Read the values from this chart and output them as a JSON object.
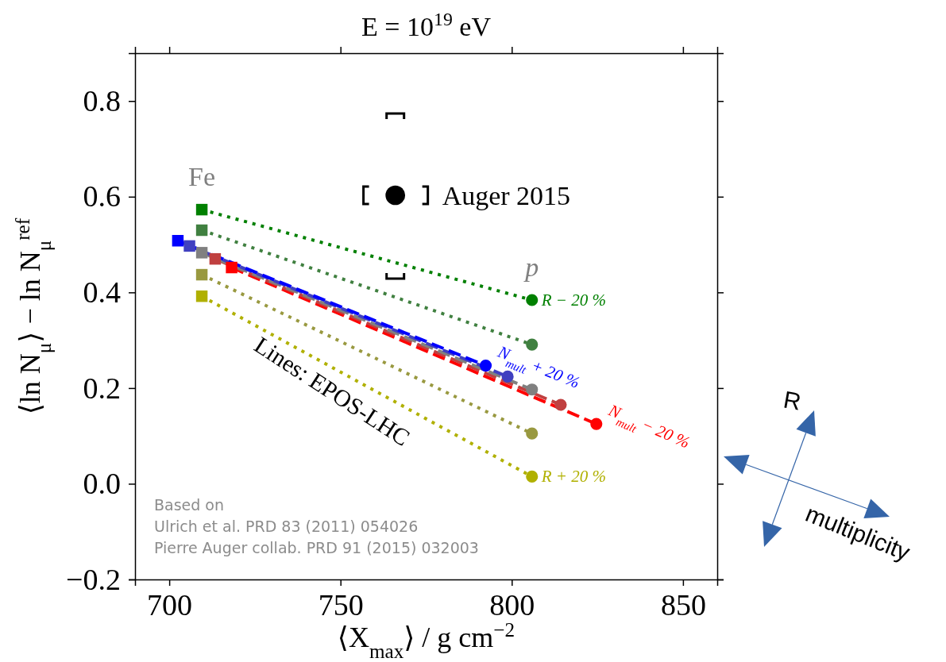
{
  "chart_data": {
    "type": "line",
    "title": "E = 10$^{19}$ eV",
    "xlabel": "⟨X$_{max}$⟩ / g cm$^{−2}$",
    "ylabel": "⟨ln N$_{μ}$⟩ − ln N$_{μ}$$^{ref}$",
    "xlim": [
      690,
      860
    ],
    "xticks": [
      700,
      750,
      800,
      850
    ],
    "ylim": [
      -0.2,
      0.9
    ],
    "yticks": [
      {
        "value": -0.2,
        "label": "−0.2"
      },
      {
        "value": 0,
        "label": "0.0"
      },
      0.2,
      0.4,
      0.6,
      0.8
    ],
    "grid": false,
    "series": [
      {
        "type": "line",
        "name": "R − 20 %",
        "color": "#008000",
        "x": [
          709.5,
          805.9
        ],
        "values": [
          0.573,
          0.384
        ],
        "line_style": "dotted",
        "marker": "none"
      },
      {
        "type": "line",
        "color": "#408040",
        "x": [
          709.5,
          805.9
        ],
        "values": [
          0.53,
          0.291
        ],
        "line_style": "dotted",
        "marker": "none"
      },
      {
        "type": "line",
        "color": "#999940",
        "x": [
          709.5,
          805.9
        ],
        "values": [
          0.437,
          0.105
        ],
        "line_style": "dotted",
        "marker": "none"
      },
      {
        "type": "line",
        "name": "R + 20 %",
        "color": "#b0b000",
        "x": [
          709.5,
          805.9
        ],
        "values": [
          0.392,
          0.015
        ],
        "line_style": "dotted",
        "marker": "none"
      },
      {
        "type": "line",
        "name": "N$_{mult}$ − 20 %",
        "color": "#ff0000",
        "x": [
          718.2,
          824.7
        ],
        "values": [
          0.452,
          0.125
        ],
        "line_style": "dashed",
        "marker": "none"
      },
      {
        "type": "line",
        "color": "#c04040",
        "x": [
          713.4,
          814.3
        ],
        "values": [
          0.47,
          0.165
        ],
        "line_style": "dashed",
        "marker": "none"
      },
      {
        "type": "line",
        "color": "#808080",
        "x": [
          709.5,
          805.9
        ],
        "values": [
          0.483,
          0.197
        ],
        "line_style": "dashed",
        "marker": "none"
      },
      {
        "type": "line",
        "color": "#4040c0",
        "x": [
          705.9,
          798.8
        ],
        "values": [
          0.497,
          0.224
        ],
        "line_style": "dashed",
        "marker": "none"
      },
      {
        "type": "line",
        "name": "N$_{mult}$ + 20 %",
        "color": "#0000ff",
        "x": [
          702.5,
          792.4
        ],
        "values": [
          0.508,
          0.247
        ],
        "line_style": "dashed",
        "marker": "none"
      },
      {
        "type": "scatter",
        "name": "Fe",
        "color": "#808080",
        "marker": "square",
        "x": [
          709.5,
          709.5,
          709.5,
          709.5,
          718.2,
          713.4,
          709.5,
          705.9,
          702.5
        ],
        "values": [
          0.573,
          0.53,
          0.437,
          0.392,
          0.452,
          0.47,
          0.483,
          0.497,
          0.508
        ],
        "colors": [
          "#008000",
          "#408040",
          "#999940",
          "#b0b000",
          "#ff0000",
          "#c04040",
          "#808080",
          "#4040c0",
          "#0000ff"
        ]
      },
      {
        "type": "scatter",
        "name": "p",
        "color": "#808080",
        "marker": "circle",
        "x": [
          805.9,
          805.9,
          805.9,
          805.9,
          824.7,
          814.3,
          805.9,
          798.8,
          792.4
        ],
        "values": [
          0.384,
          0.291,
          0.105,
          0.015,
          0.125,
          0.165,
          0.197,
          0.224,
          0.247
        ],
        "colors": [
          "#008000",
          "#408040",
          "#999940",
          "#b0b000",
          "#ff0000",
          "#c04040",
          "#808080",
          "#4040c0",
          "#0000ff"
        ]
      },
      {
        "type": "scatter",
        "name": "Auger 2015",
        "color": "#000000",
        "marker": "circle",
        "x": [
          766.0
        ],
        "values": [
          0.603
        ],
        "errors": [
          [
            0.429,
            0.774
          ]
        ],
        "xerrors": [
          [
            756.7,
            775.5
          ]
        ]
      }
    ],
    "annotations": [
      "Lines: EPOS-LHC",
      "Based on\nUlrich et al. PRD 83 (2011) 054026\nPierre Auger collab. PRD 91 (2015) 032003",
      "R",
      "multiplicity"
    ]
  }
}
